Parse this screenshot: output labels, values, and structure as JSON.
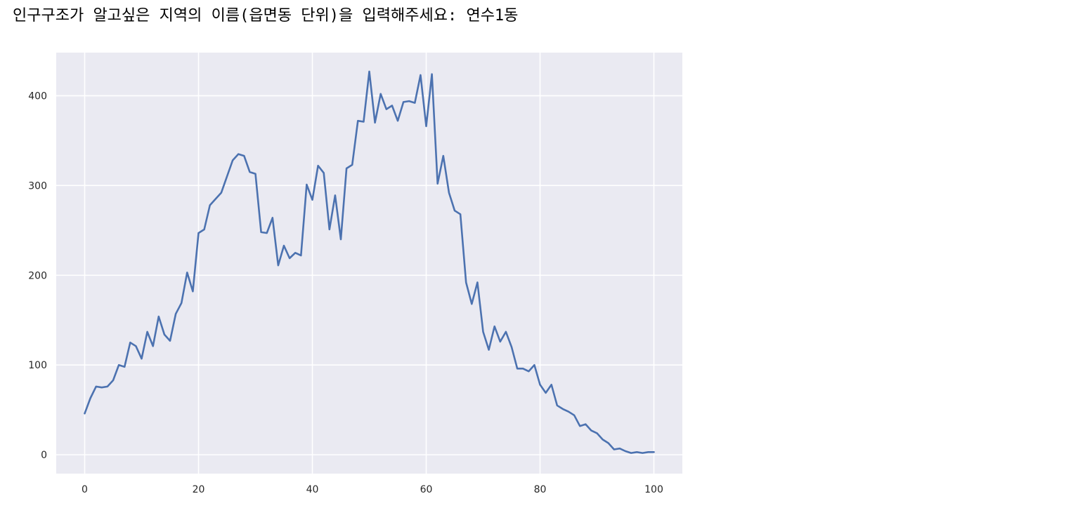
{
  "prompt": {
    "text": "인구구조가 알고싶은 지역의 이름(읍면동 단위)을 입력해주세요: 연수1동"
  },
  "colors": {
    "plot_bg": "#eaeaf2",
    "grid": "#ffffff",
    "line": "#4c72b0"
  },
  "chart_data": {
    "type": "line",
    "title": "",
    "xlabel": "",
    "ylabel": "",
    "grid": true,
    "xlim": [
      -5,
      105
    ],
    "ylim": [
      -21,
      448
    ],
    "x_ticks": [
      0,
      20,
      40,
      60,
      80,
      100
    ],
    "y_ticks": [
      0,
      100,
      200,
      300,
      400
    ],
    "x_tick_labels": [
      "0",
      "20",
      "40",
      "60",
      "80",
      "100"
    ],
    "y_tick_labels": [
      "0",
      "100",
      "200",
      "300",
      "400"
    ],
    "series": [
      {
        "x": [
          0,
          1,
          2,
          3,
          4,
          5,
          6,
          7,
          8,
          9,
          10,
          11,
          12,
          13,
          14,
          15,
          16,
          17,
          18,
          19,
          20,
          21,
          22,
          23,
          24,
          25,
          26,
          27,
          28,
          29,
          30,
          31,
          32,
          33,
          34,
          35,
          36,
          37,
          38,
          39,
          40,
          41,
          42,
          43,
          44,
          45,
          46,
          47,
          48,
          49,
          50,
          51,
          52,
          53,
          54,
          55,
          56,
          57,
          58,
          59,
          60,
          61,
          62,
          63,
          64,
          65,
          66,
          67,
          68,
          69,
          70,
          71,
          72,
          73,
          74,
          75,
          76,
          77,
          78,
          79,
          80,
          81,
          82,
          83,
          84,
          85,
          86,
          87,
          88,
          89,
          90,
          91,
          92,
          93,
          94,
          95,
          96,
          97,
          98,
          99,
          100
        ],
        "values": [
          46,
          63,
          76,
          75,
          76,
          83,
          100,
          98,
          125,
          121,
          107,
          137,
          121,
          154,
          134,
          127,
          157,
          169,
          203,
          182,
          247,
          251,
          278,
          285,
          292,
          310,
          328,
          335,
          333,
          315,
          313,
          248,
          247,
          264,
          211,
          233,
          219,
          225,
          222,
          301,
          284,
          322,
          314,
          251,
          289,
          240,
          319,
          323,
          372,
          371,
          427,
          370,
          402,
          385,
          389,
          372,
          393,
          394,
          392,
          423,
          366,
          424,
          302,
          333,
          292,
          272,
          268,
          192,
          168,
          192,
          137,
          117,
          143,
          126,
          137,
          120,
          96,
          96,
          93,
          100,
          78,
          69,
          78,
          55,
          51,
          48,
          44,
          32,
          34,
          27,
          24,
          17,
          13,
          6,
          7,
          4,
          2,
          3,
          2,
          3,
          3
        ]
      }
    ]
  }
}
